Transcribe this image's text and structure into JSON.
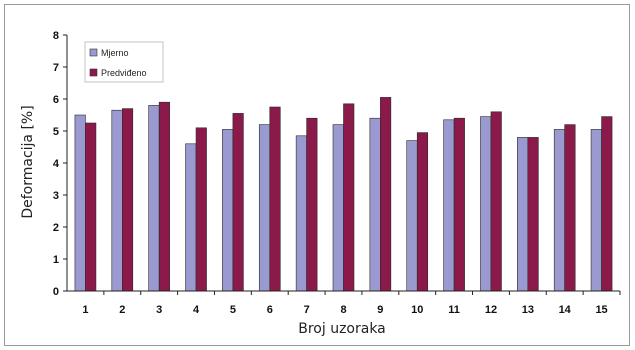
{
  "chart_data": {
    "type": "bar",
    "categories": [
      "1",
      "2",
      "3",
      "4",
      "5",
      "6",
      "7",
      "8",
      "9",
      "10",
      "11",
      "12",
      "13",
      "14",
      "15"
    ],
    "series": [
      {
        "name": "Mjerno",
        "color": "#9a9ad0",
        "values": [
          5.5,
          5.65,
          5.8,
          4.6,
          5.05,
          5.2,
          4.85,
          5.2,
          5.4,
          4.7,
          5.35,
          5.45,
          4.8,
          5.05,
          5.05
        ]
      },
      {
        "name": "Predviđeno",
        "color": "#8b1a4a",
        "values": [
          5.25,
          5.7,
          5.9,
          5.1,
          5.55,
          5.75,
          5.4,
          5.85,
          6.05,
          4.95,
          5.4,
          5.6,
          4.8,
          5.2,
          5.45
        ]
      }
    ],
    "xlabel": "Broj uzoraka",
    "ylabel": "Deformacija [%]",
    "ylim": [
      0,
      8
    ],
    "yticks": [
      0,
      1,
      2,
      3,
      4,
      5,
      6,
      7,
      8
    ],
    "grid": false,
    "legend": "top-left"
  }
}
